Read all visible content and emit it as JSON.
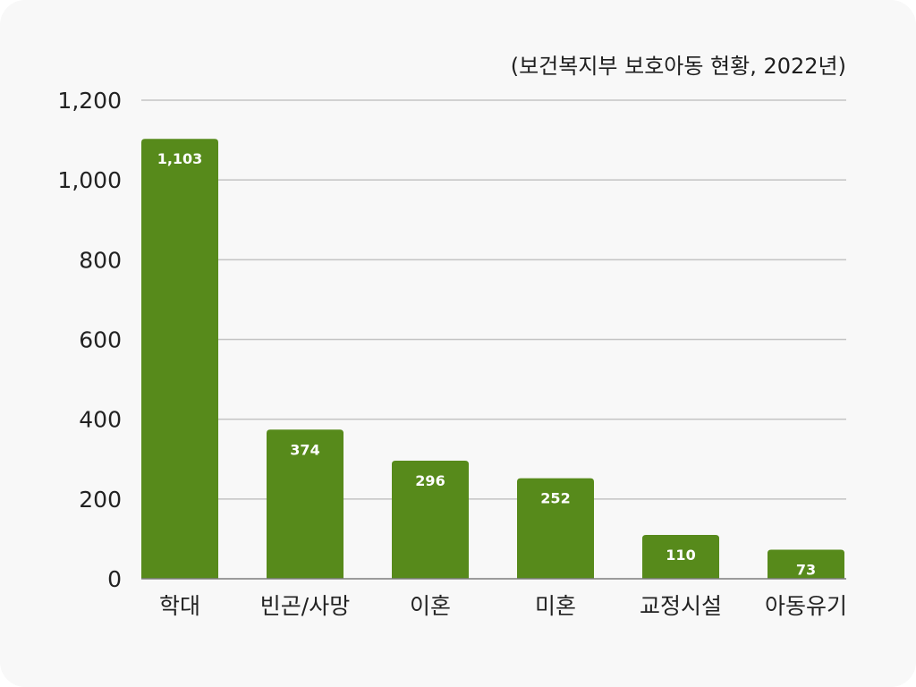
{
  "chart_data": {
    "type": "bar",
    "subtitle": "(보건복지부 보호아동 현황, 2022년)",
    "categories": [
      "학대",
      "빈곤/사망",
      "이혼",
      "미혼",
      "교정시설",
      "아동유기"
    ],
    "values": [
      1103,
      374,
      296,
      252,
      110,
      73
    ],
    "data_labels": [
      "1,103",
      "374",
      "296",
      "252",
      "110",
      "73"
    ],
    "ylim": [
      0,
      1200
    ],
    "yticks": [
      0,
      200,
      400,
      600,
      800,
      1000,
      1200
    ],
    "ytick_labels": [
      "0",
      "200",
      "400",
      "600",
      "800",
      "1,000",
      "1,200"
    ],
    "grid": true,
    "bar_color": "#578a1b",
    "grid_color": "#c4c4c4",
    "axis_color": "#7d7d7d"
  }
}
